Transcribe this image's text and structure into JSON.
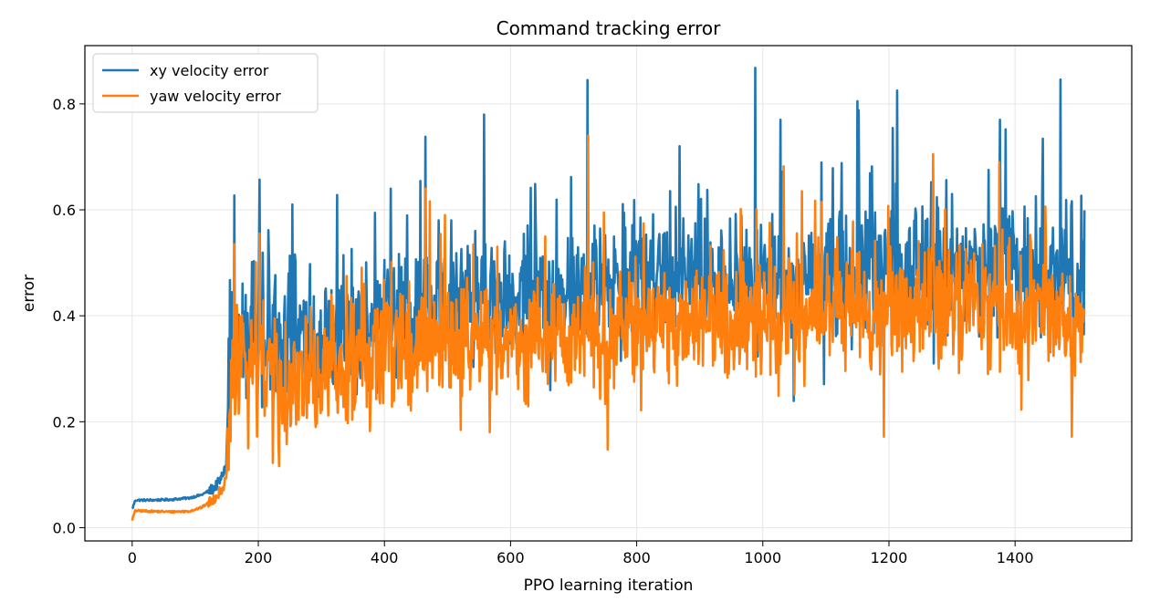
{
  "chart_data": {
    "type": "line",
    "title": "Command tracking error",
    "xlabel": "PPO learning iteration",
    "ylabel": "error",
    "xlim": [
      -75,
      1585
    ],
    "ylim": [
      -0.025,
      0.91
    ],
    "xticks": [
      0,
      200,
      400,
      600,
      800,
      1000,
      1200,
      1400
    ],
    "yticks": [
      0.0,
      0.2,
      0.4,
      0.6,
      0.8
    ],
    "grid": true,
    "legend_position": "top-left",
    "x_range": [
      0,
      1510
    ],
    "series": [
      {
        "name": "xy velocity error",
        "color": "#1f77b4",
        "anchors_x": [
          0,
          5,
          30,
          60,
          90,
          110,
          130,
          140,
          150,
          155,
          160,
          170,
          200,
          250,
          300,
          400,
          500,
          600,
          700,
          800,
          900,
          1000,
          1100,
          1200,
          1300,
          1400,
          1500,
          1510
        ],
        "anchors_y": [
          0.035,
          0.052,
          0.052,
          0.053,
          0.056,
          0.062,
          0.075,
          0.09,
          0.12,
          0.3,
          0.38,
          0.36,
          0.37,
          0.35,
          0.36,
          0.4,
          0.42,
          0.44,
          0.45,
          0.46,
          0.47,
          0.47,
          0.48,
          0.5,
          0.5,
          0.49,
          0.48,
          0.47
        ],
        "spikes": [
          [
            162,
            0.627
          ],
          [
            202,
            0.657
          ],
          [
            254,
            0.61
          ],
          [
            325,
            0.628
          ],
          [
            410,
            0.64
          ],
          [
            465,
            0.738
          ],
          [
            558,
            0.78
          ],
          [
            722,
            0.845
          ],
          [
            868,
            0.72
          ],
          [
            988,
            0.868
          ],
          [
            1028,
            0.77
          ],
          [
            1150,
            0.805
          ],
          [
            1213,
            0.825
          ],
          [
            1376,
            0.77
          ],
          [
            1472,
            0.846
          ]
        ]
      },
      {
        "name": "yaw velocity error",
        "color": "#ff7f0e",
        "anchors_x": [
          0,
          5,
          30,
          60,
          90,
          110,
          130,
          140,
          150,
          155,
          160,
          170,
          200,
          250,
          300,
          400,
          500,
          600,
          700,
          800,
          900,
          1000,
          1100,
          1200,
          1300,
          1400,
          1500,
          1510
        ],
        "anchors_y": [
          0.015,
          0.032,
          0.031,
          0.03,
          0.031,
          0.038,
          0.055,
          0.07,
          0.09,
          0.22,
          0.3,
          0.3,
          0.3,
          0.28,
          0.3,
          0.33,
          0.35,
          0.36,
          0.37,
          0.38,
          0.39,
          0.4,
          0.41,
          0.42,
          0.42,
          0.41,
          0.4,
          0.39
        ],
        "spikes": [
          [
            162,
            0.535
          ],
          [
            202,
            0.555
          ],
          [
            340,
            0.475
          ],
          [
            465,
            0.64
          ],
          [
            496,
            0.59
          ],
          [
            723,
            0.74
          ],
          [
            1062,
            0.635
          ],
          [
            1270,
            0.705
          ],
          [
            1375,
            0.69
          ],
          [
            1192,
            0.172
          ],
          [
            1490,
            0.172
          ]
        ]
      }
    ]
  }
}
